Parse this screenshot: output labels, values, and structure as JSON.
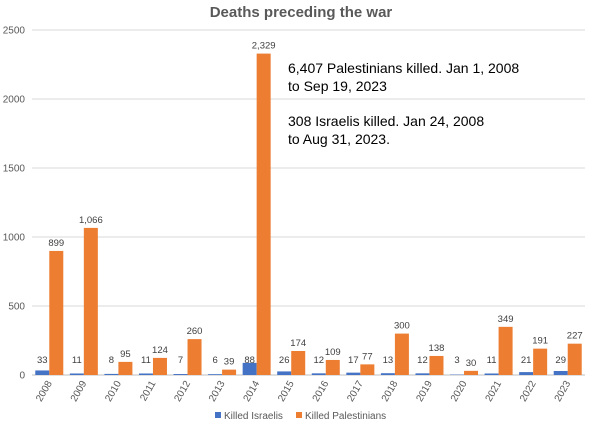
{
  "chart_data": {
    "type": "bar",
    "title": "Deaths preceding the war",
    "xlabel": "",
    "ylabel": "",
    "ylim": [
      0,
      2500
    ],
    "yticks": [
      "0",
      "500",
      "1000",
      "1500",
      "2000",
      "2500"
    ],
    "grid": true,
    "legend": "bottom",
    "categories": [
      "2008",
      "2009",
      "2010",
      "2011",
      "2012",
      "2013",
      "2014",
      "2015",
      "2016",
      "2017",
      "2018",
      "2019",
      "2020",
      "2021",
      "2022",
      "2023"
    ],
    "series": [
      {
        "name": "Killed Israelis",
        "color": "#4472C4",
        "values": [
          33,
          11,
          8,
          11,
          7,
          6,
          88,
          26,
          12,
          17,
          13,
          12,
          3,
          11,
          21,
          29
        ],
        "labels": [
          "33",
          "11",
          "8",
          "11",
          "7",
          "6",
          "88",
          "26",
          "12",
          "17",
          "13",
          "12",
          "3",
          "11",
          "21",
          "29"
        ]
      },
      {
        "name": "Killed Palestinians",
        "color": "#ED7D31",
        "values": [
          899,
          1066,
          95,
          124,
          260,
          39,
          2329,
          174,
          109,
          77,
          300,
          138,
          30,
          349,
          191,
          227
        ],
        "labels": [
          "899",
          "1,066",
          "95",
          "124",
          "260",
          "39",
          "2,329",
          "174",
          "109",
          "77",
          "300",
          "138",
          "30",
          "349",
          "191",
          "227"
        ]
      }
    ],
    "annotations": [
      {
        "lines": [
          "6,407 Palestinians killed. Jan 1, 2008",
          "to Sep 19, 2023"
        ]
      },
      {
        "lines": [
          "308 Israelis killed. Jan 24, 2008",
          "to Aug 31, 2023."
        ]
      }
    ]
  }
}
